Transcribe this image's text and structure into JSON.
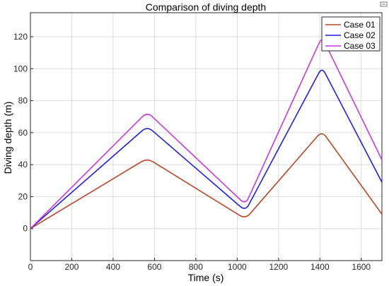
{
  "chart_data": {
    "type": "line",
    "title": "Comparison of diving depth",
    "xlabel": "Time (s)",
    "ylabel": "Diving depth (m)",
    "xlim": [
      0,
      1700
    ],
    "ylim": [
      -20,
      135
    ],
    "xticks": [
      0,
      200,
      400,
      600,
      800,
      1000,
      1200,
      1400,
      1600
    ],
    "yticks": [
      0,
      20,
      40,
      60,
      80,
      100,
      120
    ],
    "grid": true,
    "legend_position": "top-right",
    "series": [
      {
        "name": "Case 01",
        "color": "#b5462a",
        "points": [
          [
            0,
            0
          ],
          [
            565,
            44
          ],
          [
            1040,
            6
          ],
          [
            1410,
            61
          ],
          [
            1700,
            9
          ]
        ]
      },
      {
        "name": "Case 02",
        "color": "#1f1fd6",
        "points": [
          [
            0,
            0
          ],
          [
            565,
            64
          ],
          [
            1040,
            11
          ],
          [
            1410,
            101
          ],
          [
            1700,
            29
          ]
        ]
      },
      {
        "name": "Case 03",
        "color": "#c43ad6",
        "points": [
          [
            0,
            0
          ],
          [
            565,
            73
          ],
          [
            1040,
            15
          ],
          [
            1410,
            120
          ],
          [
            1700,
            43
          ]
        ]
      }
    ]
  }
}
